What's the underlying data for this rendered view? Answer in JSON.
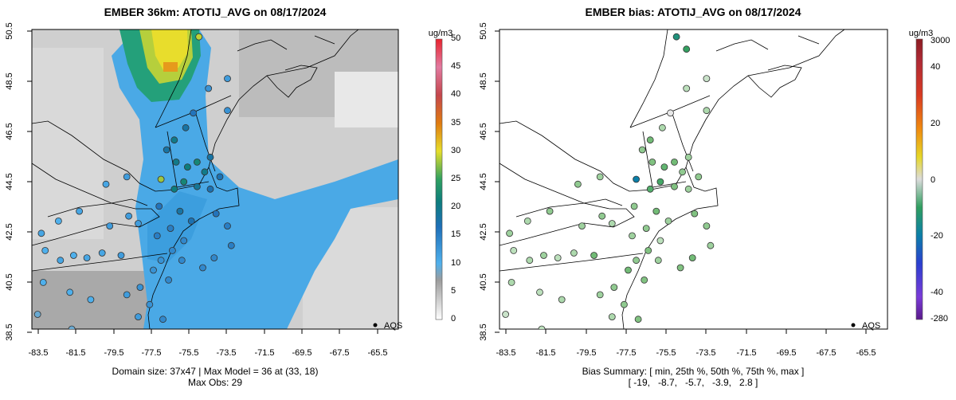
{
  "chart_data": [
    {
      "type": "heatmap",
      "title": "EMBER 36km: ATOTIJ_AVG on 08/17/2024",
      "xlabel": "",
      "ylabel": "",
      "x_ticks": [
        "-83.5",
        "-81.5",
        "-79.5",
        "-77.5",
        "-75.5",
        "-73.5",
        "-71.5",
        "-69.5",
        "-67.5",
        "-65.5"
      ],
      "y_ticks": [
        "38.5",
        "40.5",
        "42.5",
        "44.5",
        "46.5",
        "48.5",
        "50.5"
      ],
      "xlim": [
        -84.3,
        -65.0
      ],
      "ylim": [
        38.4,
        50.6
      ],
      "colorbar": {
        "unit": "ug/m3",
        "ticks": [
          "0",
          "5",
          "10",
          "15",
          "20",
          "25",
          "30",
          "35",
          "40",
          "45",
          "50"
        ],
        "range": [
          0,
          50
        ]
      },
      "legend": {
        "label": "AQS",
        "position": "bottom-right"
      },
      "caption_lines": [
        "Domain size: 37x47 | Max Model = 36 at (33, 18)",
        "Max Obs: 29"
      ],
      "observations": [
        {
          "lon": -75.5,
          "lat": 50.3,
          "value": 29
        },
        {
          "lon": -77.5,
          "lat": 44.5,
          "value": 28
        },
        {
          "lon": -75.0,
          "lat": 48.2,
          "value": 13
        },
        {
          "lon": -74.0,
          "lat": 48.6,
          "value": 12
        },
        {
          "lon": -75.8,
          "lat": 47.2,
          "value": 16
        },
        {
          "lon": -76.2,
          "lat": 46.6,
          "value": 18
        },
        {
          "lon": -76.8,
          "lat": 46.1,
          "value": 20
        },
        {
          "lon": -77.2,
          "lat": 45.7,
          "value": 18
        },
        {
          "lon": -76.7,
          "lat": 45.2,
          "value": 20
        },
        {
          "lon": -76.1,
          "lat": 45.0,
          "value": 21
        },
        {
          "lon": -75.6,
          "lat": 45.2,
          "value": 22
        },
        {
          "lon": -75.2,
          "lat": 44.8,
          "value": 20
        },
        {
          "lon": -76.3,
          "lat": 44.4,
          "value": 22
        },
        {
          "lon": -75.6,
          "lat": 44.2,
          "value": 19
        },
        {
          "lon": -74.9,
          "lat": 44.1,
          "value": 17
        },
        {
          "lon": -76.8,
          "lat": 44.1,
          "value": 21
        },
        {
          "lon": -77.6,
          "lat": 43.4,
          "value": 16
        },
        {
          "lon": -76.5,
          "lat": 43.2,
          "value": 18
        },
        {
          "lon": -75.9,
          "lat": 42.8,
          "value": 17
        },
        {
          "lon": -77.0,
          "lat": 42.5,
          "value": 15
        },
        {
          "lon": -77.7,
          "lat": 42.2,
          "value": 15
        },
        {
          "lon": -76.3,
          "lat": 42.0,
          "value": 14
        },
        {
          "lon": -76.9,
          "lat": 41.6,
          "value": 14
        },
        {
          "lon": -77.5,
          "lat": 41.2,
          "value": 13
        },
        {
          "lon": -76.4,
          "lat": 41.2,
          "value": 14
        },
        {
          "lon": -77.9,
          "lat": 40.8,
          "value": 13
        },
        {
          "lon": -77.1,
          "lat": 40.4,
          "value": 14
        },
        {
          "lon": -78.6,
          "lat": 40.1,
          "value": 13
        },
        {
          "lon": -79.3,
          "lat": 39.8,
          "value": 12
        },
        {
          "lon": -78.1,
          "lat": 39.4,
          "value": 13
        },
        {
          "lon": -77.4,
          "lat": 38.8,
          "value": 14
        },
        {
          "lon": -78.7,
          "lat": 38.9,
          "value": 12
        },
        {
          "lon": -79.6,
          "lat": 41.4,
          "value": 12
        },
        {
          "lon": -80.6,
          "lat": 41.5,
          "value": 11
        },
        {
          "lon": -81.4,
          "lat": 41.3,
          "value": 11
        },
        {
          "lon": -82.1,
          "lat": 41.4,
          "value": 10
        },
        {
          "lon": -82.8,
          "lat": 41.2,
          "value": 11
        },
        {
          "lon": -83.6,
          "lat": 41.6,
          "value": 10
        },
        {
          "lon": -83.8,
          "lat": 42.3,
          "value": 11
        },
        {
          "lon": -82.9,
          "lat": 42.8,
          "value": 10
        },
        {
          "lon": -81.8,
          "lat": 43.2,
          "value": 11
        },
        {
          "lon": -80.2,
          "lat": 42.6,
          "value": 12
        },
        {
          "lon": -79.2,
          "lat": 43.0,
          "value": 12
        },
        {
          "lon": -78.7,
          "lat": 42.7,
          "value": 12
        },
        {
          "lon": -80.4,
          "lat": 44.3,
          "value": 11
        },
        {
          "lon": -79.3,
          "lat": 44.6,
          "value": 12
        },
        {
          "lon": -83.7,
          "lat": 40.3,
          "value": 10
        },
        {
          "lon": -82.3,
          "lat": 39.9,
          "value": 10
        },
        {
          "lon": -81.2,
          "lat": 39.6,
          "value": 10
        },
        {
          "lon": -84.0,
          "lat": 39.0,
          "value": 9
        },
        {
          "lon": -82.2,
          "lat": 38.4,
          "value": 9
        },
        {
          "lon": -74.6,
          "lat": 43.1,
          "value": 16
        },
        {
          "lon": -74.0,
          "lat": 42.6,
          "value": 15
        },
        {
          "lon": -73.8,
          "lat": 41.8,
          "value": 15
        },
        {
          "lon": -74.7,
          "lat": 41.3,
          "value": 14
        },
        {
          "lon": -75.3,
          "lat": 40.9,
          "value": 14
        },
        {
          "lon": -74.4,
          "lat": 44.6,
          "value": 17
        },
        {
          "lon": -74.9,
          "lat": 45.4,
          "value": 18
        },
        {
          "lon": -74.0,
          "lat": 47.3,
          "value": 13
        }
      ]
    },
    {
      "type": "scatter",
      "title": "EMBER bias: ATOTIJ_AVG on 08/17/2024",
      "xlabel": "",
      "ylabel": "",
      "x_ticks": [
        "-83.5",
        "-81.5",
        "-79.5",
        "-77.5",
        "-75.5",
        "-73.5",
        "-71.5",
        "-69.5",
        "-67.5",
        "-65.5"
      ],
      "y_ticks": [
        "38.5",
        "40.5",
        "42.5",
        "44.5",
        "46.5",
        "48.5",
        "50.5"
      ],
      "xlim": [
        -84.3,
        -65.0
      ],
      "ylim": [
        38.4,
        50.6
      ],
      "colorbar": {
        "unit": "ug/m3",
        "ticks": [
          "3000",
          "40",
          "20",
          "0",
          "-20",
          "-40",
          "-280"
        ],
        "range": [
          -280,
          3000
        ]
      },
      "legend": {
        "label": "AQS",
        "position": "bottom-right"
      },
      "caption_lines": [
        "Bias Summary: [ min, 25th %, 50th %, 75th %, max ]",
        "[ -19,   -8.7,   -5.7,   -3.9,   2.8 ]"
      ],
      "summary": {
        "min": -19,
        "p25": -8.7,
        "p50": -5.7,
        "p75": -3.9,
        "max": 2.8
      },
      "observations": [
        {
          "lon": -75.5,
          "lat": 50.3,
          "value": -15
        },
        {
          "lon": -75.0,
          "lat": 49.8,
          "value": -12
        },
        {
          "lon": -77.5,
          "lat": 44.5,
          "value": -19
        },
        {
          "lon": -75.0,
          "lat": 48.2,
          "value": -3
        },
        {
          "lon": -74.0,
          "lat": 48.6,
          "value": -2
        },
        {
          "lon": -75.8,
          "lat": 47.2,
          "value": 2.8
        },
        {
          "lon": -76.2,
          "lat": 46.6,
          "value": -4
        },
        {
          "lon": -76.8,
          "lat": 46.1,
          "value": -8
        },
        {
          "lon": -77.2,
          "lat": 45.7,
          "value": -6
        },
        {
          "lon": -76.7,
          "lat": 45.2,
          "value": -7
        },
        {
          "lon": -76.1,
          "lat": 45.0,
          "value": -9
        },
        {
          "lon": -75.6,
          "lat": 45.2,
          "value": -8
        },
        {
          "lon": -75.2,
          "lat": 44.8,
          "value": -6
        },
        {
          "lon": -76.3,
          "lat": 44.4,
          "value": -11
        },
        {
          "lon": -75.6,
          "lat": 44.2,
          "value": -7
        },
        {
          "lon": -74.9,
          "lat": 44.1,
          "value": -5
        },
        {
          "lon": -76.8,
          "lat": 44.1,
          "value": -10
        },
        {
          "lon": -77.6,
          "lat": 43.4,
          "value": -6
        },
        {
          "lon": -76.5,
          "lat": 43.2,
          "value": -8
        },
        {
          "lon": -75.9,
          "lat": 42.8,
          "value": -5
        },
        {
          "lon": -77.0,
          "lat": 42.5,
          "value": -6
        },
        {
          "lon": -77.7,
          "lat": 42.2,
          "value": -5
        },
        {
          "lon": -76.3,
          "lat": 42.0,
          "value": -3
        },
        {
          "lon": -76.9,
          "lat": 41.6,
          "value": -7
        },
        {
          "lon": -77.5,
          "lat": 41.2,
          "value": -6
        },
        {
          "lon": -76.4,
          "lat": 41.2,
          "value": -5
        },
        {
          "lon": -77.9,
          "lat": 40.8,
          "value": -8
        },
        {
          "lon": -77.1,
          "lat": 40.4,
          "value": -7
        },
        {
          "lon": -78.6,
          "lat": 40.1,
          "value": -6
        },
        {
          "lon": -79.3,
          "lat": 39.8,
          "value": -5
        },
        {
          "lon": -78.1,
          "lat": 39.4,
          "value": -6
        },
        {
          "lon": -77.4,
          "lat": 38.8,
          "value": -7
        },
        {
          "lon": -78.7,
          "lat": 38.9,
          "value": -4
        },
        {
          "lon": -79.6,
          "lat": 41.4,
          "value": -8
        },
        {
          "lon": -80.6,
          "lat": 41.5,
          "value": -4
        },
        {
          "lon": -81.4,
          "lat": 41.3,
          "value": -3
        },
        {
          "lon": -82.1,
          "lat": 41.4,
          "value": -5
        },
        {
          "lon": -82.8,
          "lat": 41.2,
          "value": -4
        },
        {
          "lon": -83.6,
          "lat": 41.6,
          "value": -3
        },
        {
          "lon": -83.8,
          "lat": 42.3,
          "value": -5
        },
        {
          "lon": -82.9,
          "lat": 42.8,
          "value": -4
        },
        {
          "lon": -81.8,
          "lat": 43.2,
          "value": -6
        },
        {
          "lon": -80.2,
          "lat": 42.6,
          "value": -5
        },
        {
          "lon": -79.2,
          "lat": 43.0,
          "value": -6
        },
        {
          "lon": -78.7,
          "lat": 42.7,
          "value": -4
        },
        {
          "lon": -80.4,
          "lat": 44.3,
          "value": -6
        },
        {
          "lon": -79.3,
          "lat": 44.6,
          "value": -5
        },
        {
          "lon": -83.7,
          "lat": 40.3,
          "value": -4
        },
        {
          "lon": -82.3,
          "lat": 39.9,
          "value": -3
        },
        {
          "lon": -81.2,
          "lat": 39.6,
          "value": -4
        },
        {
          "lon": -84.0,
          "lat": 39.0,
          "value": -2
        },
        {
          "lon": -82.2,
          "lat": 38.4,
          "value": -3
        },
        {
          "lon": -74.6,
          "lat": 43.1,
          "value": -7
        },
        {
          "lon": -74.0,
          "lat": 42.6,
          "value": -6
        },
        {
          "lon": -73.8,
          "lat": 41.8,
          "value": -5
        },
        {
          "lon": -74.7,
          "lat": 41.3,
          "value": -8
        },
        {
          "lon": -75.3,
          "lat": 40.9,
          "value": -7
        },
        {
          "lon": -74.4,
          "lat": 44.6,
          "value": -6
        },
        {
          "lon": -74.9,
          "lat": 45.4,
          "value": -5
        },
        {
          "lon": -74.0,
          "lat": 47.3,
          "value": -4
        }
      ]
    }
  ]
}
